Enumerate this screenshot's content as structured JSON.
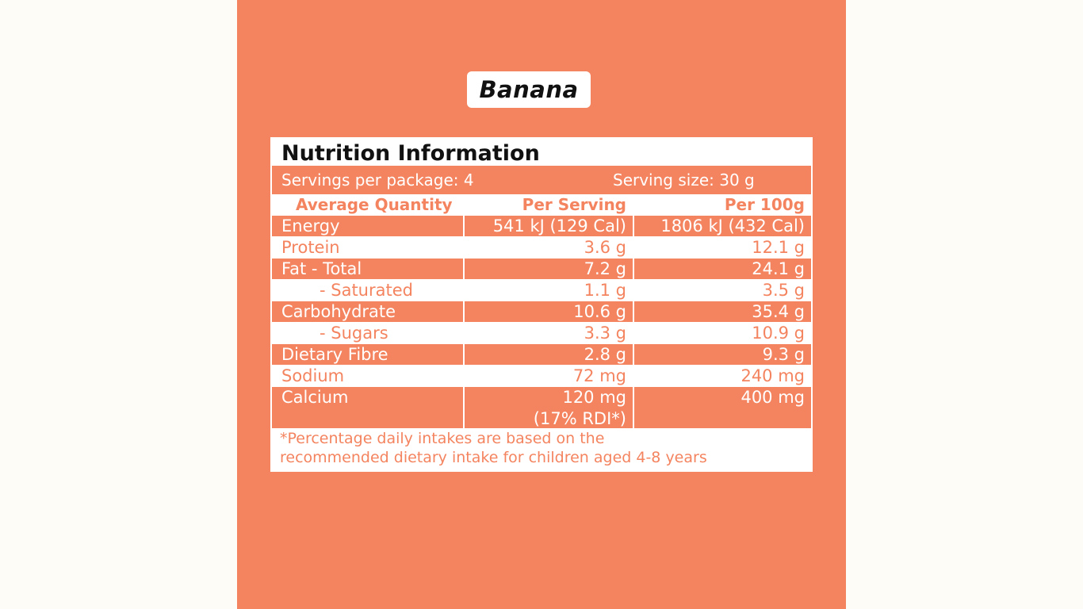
{
  "product_name": "Banana",
  "panel": {
    "heading": "Nutrition Information",
    "servings_per_package": "Servings per package: 4",
    "serving_size": "Serving size: 30 g",
    "columns": [
      "Average Quantity",
      "Per Serving",
      "Per 100g"
    ],
    "rows": [
      {
        "name": "Energy",
        "per_serving": "541 kJ (129 Cal)",
        "per_100g": "1806 kJ (432 Cal)"
      },
      {
        "name": "Protein",
        "per_serving": "3.6 g",
        "per_100g": "12.1 g"
      },
      {
        "name": "Fat - Total",
        "per_serving": "7.2 g",
        "per_100g": "24.1 g"
      },
      {
        "name": "- Saturated",
        "per_serving": "1.1 g",
        "per_100g": "3.5 g"
      },
      {
        "name": "Carbohydrate",
        "per_serving": "10.6 g",
        "per_100g": "35.4 g"
      },
      {
        "name": "- Sugars",
        "per_serving": "3.3 g",
        "per_100g": "10.9 g"
      },
      {
        "name": "Dietary Fibre",
        "per_serving": "2.8 g",
        "per_100g": "9.3 g"
      },
      {
        "name": "Sodium",
        "per_serving": "72 mg",
        "per_100g": "240 mg"
      },
      {
        "name": "Calcium",
        "per_serving": "120 mg",
        "per_serving_note": "(17% RDI*)",
        "per_100g": "400 mg"
      }
    ],
    "footnote_line1": "*Percentage daily intakes are based on the",
    "footnote_line2": "recommended dietary intake for children aged 4-8 years"
  },
  "colors": {
    "accent": "#f4845f",
    "page_background": "#fdfcf7"
  }
}
